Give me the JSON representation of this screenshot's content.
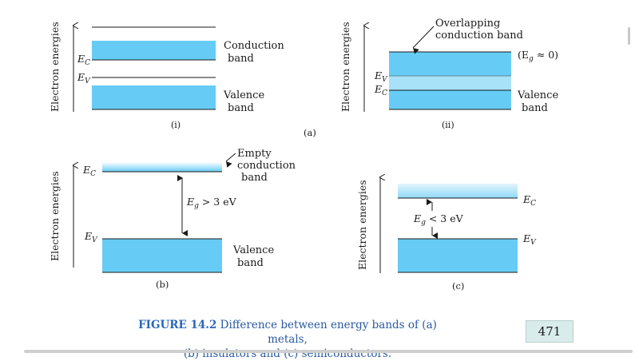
{
  "axis_label": "Electron energies",
  "panel_a": {
    "label": "(a)",
    "i": {
      "label": "(i)",
      "ec": "E",
      "ec_sub": "C",
      "ev": "E",
      "ev_sub": "V",
      "conduction_line1": "Conduction",
      "conduction_line2": "band",
      "valence_line1": "Valence",
      "valence_line2": "band"
    },
    "ii": {
      "label": "(ii)",
      "overlap_line1": "Overlapping",
      "overlap_line2": "conduction band",
      "eg_note": "(E",
      "eg_note_sub": "g",
      "eg_note_rest": " ≈ 0)",
      "ev": "E",
      "ev_sub": "V",
      "ec": "E",
      "ec_sub": "C",
      "valence_line1": "Valence",
      "valence_line2": "band"
    }
  },
  "panel_b": {
    "label": "(b)",
    "ec": "E",
    "ec_sub": "C",
    "ev": "E",
    "ev_sub": "V",
    "empty_line1": "Empty",
    "empty_line2": "conduction",
    "empty_line3": "band",
    "gap": "E",
    "gap_sub": "g",
    "gap_rest": " > 3 eV",
    "valence_line1": "Valence",
    "valence_line2": "band"
  },
  "panel_c": {
    "label": "(c)",
    "ec": "E",
    "ec_sub": "C",
    "ev": "E",
    "ev_sub": "V",
    "gap": "E",
    "gap_sub": "g",
    "gap_rest": " < 3 eV"
  },
  "caption": {
    "figure_label": "FIGURE 14.2",
    "line1": " Difference between energy bands of (a) metals,",
    "line2": "(b) insulators and (c) semiconductors."
  },
  "page_number": "471",
  "colors": {
    "band": "#66ccf5",
    "band_light": "#c9ecfb",
    "caption": "#2a5aa0"
  }
}
